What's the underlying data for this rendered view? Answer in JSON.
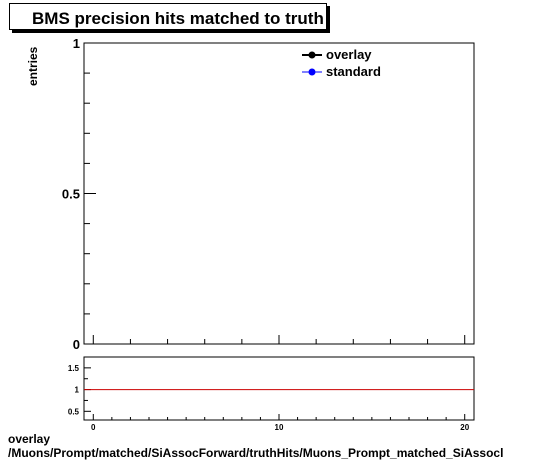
{
  "title": "BMS precision hits matched to truth",
  "footer": {
    "line1": "overlay",
    "line2": "/Muons/Prompt/matched/SiAssocForward/truthHits/Muons_Prompt_matched_SiAssocl"
  },
  "colors": {
    "overlay": "#000000",
    "standard": "#0000ff",
    "ratio_line": "#cc0000"
  },
  "chart_data": [
    {
      "type": "line",
      "title": "BMS precision hits matched to truth",
      "ylabel": "entries",
      "xlabel": "",
      "xlim": [
        -0.5,
        20.5
      ],
      "ylim": [
        0,
        1
      ],
      "yticks": [
        0,
        0.5,
        1
      ],
      "ytick_labels": [
        "0",
        "0.5",
        "1"
      ],
      "legend_position": "top-right",
      "series": [
        {
          "name": "overlay",
          "x": [],
          "y": []
        },
        {
          "name": "standard",
          "x": [],
          "y": []
        }
      ]
    },
    {
      "type": "line",
      "title": "",
      "ylabel": "",
      "xlabel": "",
      "xlim": [
        -0.5,
        20.5
      ],
      "ylim": [
        0.3,
        1.75
      ],
      "yticks": [
        0.5,
        1,
        1.5
      ],
      "ytick_labels": [
        "0.5",
        "1",
        "1.5"
      ],
      "xticks": [
        0,
        10,
        20
      ],
      "xtick_labels": [
        "0",
        "10",
        "20"
      ],
      "reference_line": 1
    }
  ]
}
